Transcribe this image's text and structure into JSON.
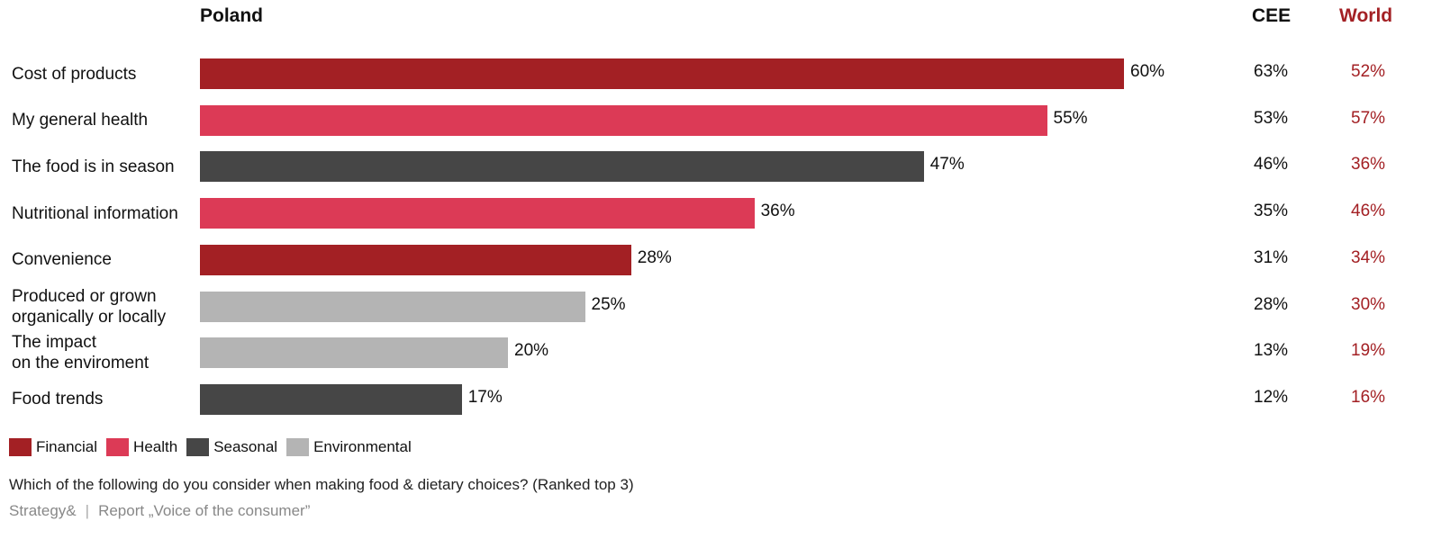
{
  "headers": {
    "poland": "Poland",
    "cee": "CEE",
    "world": "World"
  },
  "colors": {
    "Financial": "#a32024",
    "Health": "#dc3a56",
    "Seasonal": "#464646",
    "Environmental": "#b4b4b4",
    "world_text": "#a32024"
  },
  "chart_data": {
    "type": "bar",
    "orientation": "horizontal",
    "categories": [
      "Cost of products",
      "My general health",
      "The food is in season",
      "Nutritional information",
      "Convenience",
      "Produced or grown\norganically or locally",
      "The impact\non the enviroment",
      "Food trends"
    ],
    "series": [
      {
        "name": "Poland",
        "values": [
          60,
          55,
          47,
          36,
          28,
          25,
          20,
          17
        ],
        "labels": [
          "60%",
          "55%",
          "47%",
          "36%",
          "28%",
          "25%",
          "20%",
          "17%"
        ]
      }
    ],
    "groups": [
      "Financial",
      "Health",
      "Seasonal",
      "Health",
      "Financial",
      "Environmental",
      "Environmental",
      "Seasonal"
    ],
    "cee": [
      "63%",
      "53%",
      "46%",
      "35%",
      "31%",
      "28%",
      "13%",
      "12%"
    ],
    "world": [
      "52%",
      "57%",
      "36%",
      "46%",
      "34%",
      "30%",
      "19%",
      "16%"
    ],
    "xlim": [
      0,
      60
    ],
    "grid": false
  },
  "legend": [
    "Financial",
    "Health",
    "Seasonal",
    "Environmental"
  ],
  "question": "Which of the following do you consider when making food & dietary choices? (Ranked top 3)",
  "source": {
    "org": "Strategy&",
    "report": "Report „Voice of the consumer”"
  }
}
